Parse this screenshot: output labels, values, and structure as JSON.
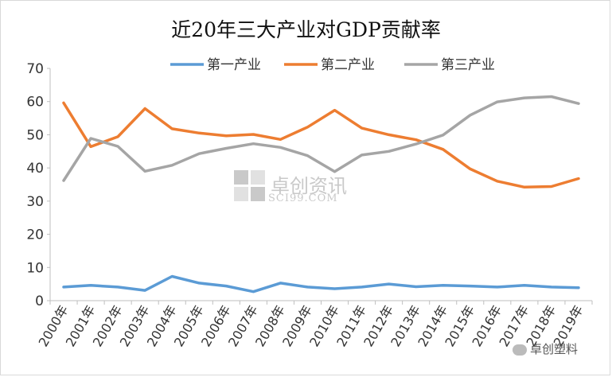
{
  "chart_data": {
    "type": "line",
    "title": "近20年三大产业对GDP贡献率",
    "xlabel": "",
    "ylabel": "",
    "ylim": [
      0,
      70
    ],
    "yticks": [
      0,
      10,
      20,
      30,
      40,
      50,
      60,
      70
    ],
    "grid": false,
    "legend_position": "top",
    "categories": [
      "2000年",
      "2001年",
      "2002年",
      "2003年",
      "2004年",
      "2005年",
      "2006年",
      "2007年",
      "2008年",
      "2009年",
      "2010年",
      "2011年",
      "2012年",
      "2013年",
      "2014年",
      "2015年",
      "2016年",
      "2017年",
      "2018年",
      "2019年"
    ],
    "series": [
      {
        "name": "第一产业",
        "color": "#5b9bd5",
        "values": [
          4.1,
          4.6,
          4.1,
          3.1,
          7.3,
          5.3,
          4.4,
          2.7,
          5.3,
          4.1,
          3.6,
          4.1,
          5.0,
          4.2,
          4.6,
          4.4,
          4.1,
          4.6,
          4.1,
          3.9
        ]
      },
      {
        "name": "第二产业",
        "color": "#ed7d31",
        "values": [
          59.6,
          46.4,
          49.4,
          57.9,
          51.8,
          50.5,
          49.7,
          50.1,
          48.6,
          52.3,
          57.4,
          52.0,
          50.0,
          48.5,
          45.6,
          39.7,
          36.0,
          34.2,
          34.4,
          36.8
        ]
      },
      {
        "name": "第三产业",
        "color": "#a5a5a5",
        "values": [
          36.2,
          48.9,
          46.5,
          39.0,
          40.8,
          44.3,
          45.9,
          47.3,
          46.2,
          43.7,
          38.9,
          43.9,
          45.0,
          47.2,
          49.9,
          55.9,
          59.9,
          61.1,
          61.5,
          59.4
        ]
      }
    ]
  },
  "watermark": {
    "brand": "卓创资讯",
    "url": "SCI99.COM",
    "corner": "卓创塑料"
  }
}
